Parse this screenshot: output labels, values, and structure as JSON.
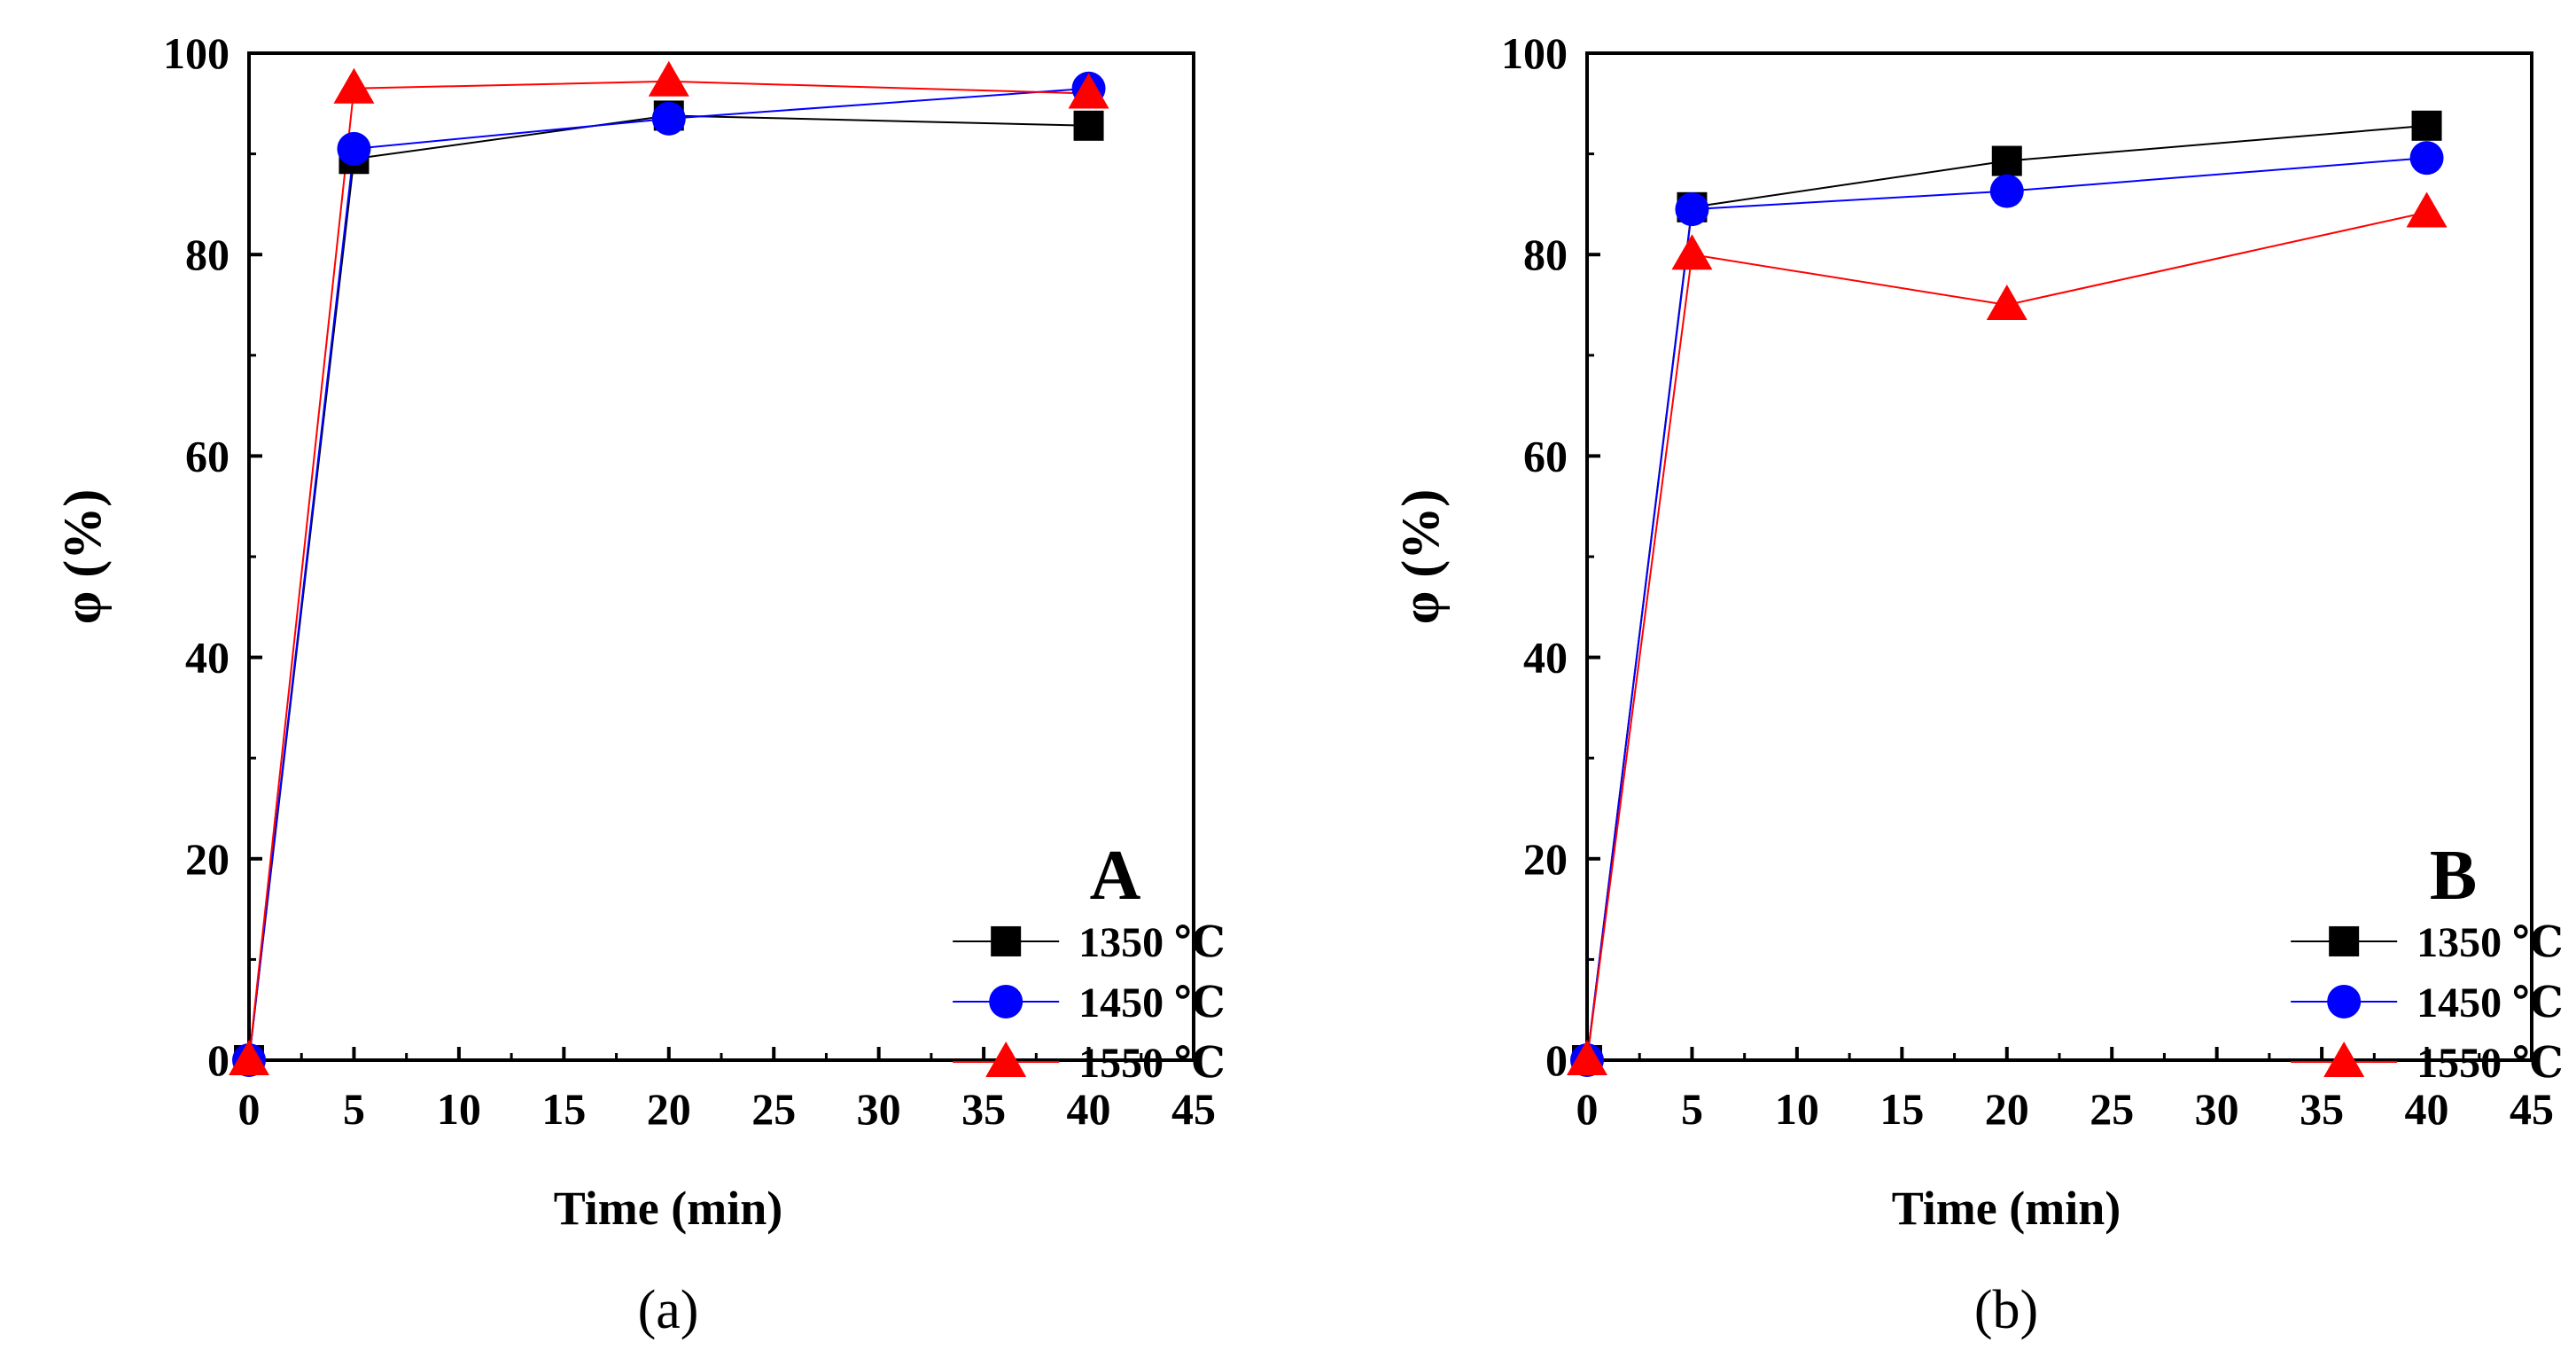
{
  "chart_data": [
    {
      "type": "line",
      "panel_letter": "A",
      "caption": "(a)",
      "xlabel": "Time (min)",
      "ylabel": "φ (%)",
      "xlim": [
        0,
        45
      ],
      "ylim": [
        0,
        100
      ],
      "xticks": [
        0,
        5,
        10,
        15,
        20,
        25,
        30,
        35,
        40,
        45
      ],
      "yticks": [
        0,
        20,
        40,
        60,
        80,
        100
      ],
      "grid": false,
      "legend_position": "bottom-right",
      "x": [
        0,
        5,
        20,
        40
      ],
      "series": [
        {
          "name": "1350 ℃",
          "marker": "square",
          "color": "#000000",
          "line_color": "#000000",
          "values": [
            0,
            89.5,
            93.8,
            92.8
          ]
        },
        {
          "name": "1450 ℃",
          "marker": "circle",
          "color": "#0000ff",
          "line_color": "#0000ff",
          "values": [
            0,
            90.5,
            93.5,
            96.5
          ]
        },
        {
          "name": "1550 ℃",
          "marker": "triangle",
          "color": "#ff0000",
          "line_color": "#ff0000",
          "values": [
            0,
            96.5,
            97.2,
            96.0
          ]
        }
      ]
    },
    {
      "type": "line",
      "panel_letter": "B",
      "caption": "(b)",
      "xlabel": "Time (min)",
      "ylabel": "φ (%)",
      "xlim": [
        0,
        45
      ],
      "ylim": [
        0,
        100
      ],
      "xticks": [
        0,
        5,
        10,
        15,
        20,
        25,
        30,
        35,
        40,
        45
      ],
      "yticks": [
        0,
        20,
        40,
        60,
        80,
        100
      ],
      "grid": false,
      "legend_position": "bottom-right",
      "x": [
        0,
        5,
        20,
        40
      ],
      "series": [
        {
          "name": "1350 ℃",
          "marker": "square",
          "color": "#000000",
          "line_color": "#000000",
          "values": [
            0,
            84.7,
            89.3,
            92.8
          ]
        },
        {
          "name": "1450 ℃",
          "marker": "circle",
          "color": "#0000ff",
          "line_color": "#0000ff",
          "values": [
            0,
            84.5,
            86.3,
            89.6
          ]
        },
        {
          "name": "1550 ℃",
          "marker": "triangle",
          "color": "#ff0000",
          "line_color": "#ff0000",
          "values": [
            0,
            80.0,
            75.0,
            84.2
          ]
        }
      ]
    }
  ]
}
